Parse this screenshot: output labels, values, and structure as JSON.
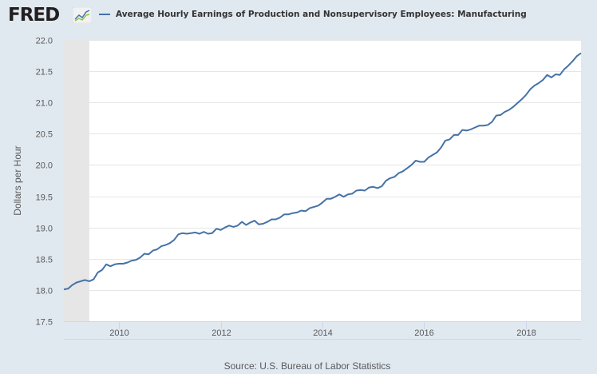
{
  "header": {
    "logo_text": "FRED",
    "logo_icon": "fred-chart-icon",
    "legend_label": "Average Hourly Earnings of Production and Nonsupervisory Employees: Manufacturing",
    "legend_color": "#4572a7"
  },
  "footer": {
    "source": "Source: U.S. Bureau of Labor Statistics"
  },
  "colors": {
    "background": "#e1e9f0",
    "plot_background": "#ffffff",
    "line": "#4572a7",
    "recession_shade": "#e6e6e6",
    "gridline": "#e6e6e6"
  },
  "chart_data": {
    "type": "line",
    "title": "",
    "series_name": "Average Hourly Earnings of Production and Nonsupervisory Employees: Manufacturing",
    "xlabel": "",
    "ylabel": "Dollars per Hour",
    "ylim": [
      17.5,
      22.0
    ],
    "yticks": [
      "17.5",
      "18.0",
      "18.5",
      "19.0",
      "19.5",
      "20.0",
      "20.5",
      "21.0",
      "21.5",
      "22.0"
    ],
    "xticks": [
      "2010",
      "2012",
      "2014",
      "2016",
      "2018"
    ],
    "x_range": [
      "2008-12",
      "2018-12"
    ],
    "grid": true,
    "legend_position": "top",
    "recession_shading": [
      {
        "start": "2008-12",
        "end": "2009-06"
      }
    ],
    "source": "Source: U.S. Bureau of Labor Statistics",
    "frequency": "monthly",
    "x_start": "2008-12",
    "values": [
      18.01,
      18.02,
      18.08,
      18.12,
      18.14,
      18.16,
      18.14,
      18.17,
      18.28,
      18.32,
      18.41,
      18.38,
      18.41,
      18.42,
      18.42,
      18.44,
      18.47,
      18.48,
      18.52,
      18.58,
      18.57,
      18.63,
      18.65,
      18.7,
      18.72,
      18.75,
      18.8,
      18.89,
      18.91,
      18.9,
      18.91,
      18.92,
      18.9,
      18.93,
      18.9,
      18.91,
      18.98,
      18.96,
      19.0,
      19.03,
      19.01,
      19.03,
      19.09,
      19.04,
      19.08,
      19.11,
      19.05,
      19.06,
      19.09,
      19.13,
      19.13,
      19.16,
      19.21,
      19.21,
      19.23,
      19.24,
      19.27,
      19.26,
      19.31,
      19.33,
      19.35,
      19.4,
      19.46,
      19.46,
      19.49,
      19.53,
      19.49,
      19.53,
      19.54,
      19.59,
      19.6,
      19.59,
      19.64,
      19.65,
      19.63,
      19.66,
      19.75,
      19.79,
      19.81,
      19.87,
      19.9,
      19.95,
      20.0,
      20.07,
      20.05,
      20.05,
      20.12,
      20.16,
      20.2,
      20.28,
      20.39,
      20.41,
      20.48,
      20.48,
      20.56,
      20.55,
      20.57,
      20.6,
      20.63,
      20.63,
      20.64,
      20.69,
      20.79,
      20.8,
      20.85,
      20.88,
      20.93,
      20.99,
      21.05,
      21.12,
      21.21,
      21.27,
      21.31,
      21.36,
      21.44,
      21.4,
      21.45,
      21.44,
      21.53,
      21.59,
      21.66,
      21.74,
      21.79
    ]
  }
}
